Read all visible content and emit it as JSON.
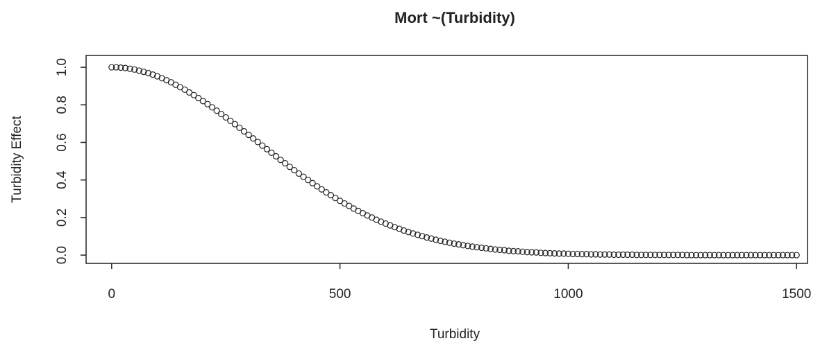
{
  "chart_data": {
    "type": "scatter",
    "title": "Mort ~(Turbidity)",
    "x_label": "Turbidity",
    "y_label": "Turbidity Effect",
    "x": [
      0,
      10,
      20,
      30,
      40,
      50,
      60,
      70,
      80,
      90,
      100,
      110,
      120,
      130,
      140,
      150,
      160,
      170,
      180,
      190,
      200,
      210,
      220,
      230,
      240,
      250,
      260,
      270,
      280,
      290,
      300,
      310,
      320,
      330,
      340,
      350,
      360,
      370,
      380,
      390,
      400,
      410,
      420,
      430,
      440,
      450,
      460,
      470,
      480,
      490,
      500,
      510,
      520,
      530,
      540,
      550,
      560,
      570,
      580,
      590,
      600,
      610,
      620,
      630,
      640,
      650,
      660,
      670,
      680,
      690,
      700,
      710,
      720,
      730,
      740,
      750,
      760,
      770,
      780,
      790,
      800,
      810,
      820,
      830,
      840,
      850,
      860,
      870,
      880,
      890,
      900,
      910,
      920,
      930,
      940,
      950,
      960,
      970,
      980,
      990,
      1000,
      1010,
      1020,
      1030,
      1040,
      1050,
      1060,
      1070,
      1080,
      1090,
      1100,
      1110,
      1120,
      1130,
      1140,
      1150,
      1160,
      1170,
      1180,
      1190,
      1200,
      1210,
      1220,
      1230,
      1240,
      1250,
      1260,
      1270,
      1280,
      1290,
      1300,
      1310,
      1320,
      1330,
      1340,
      1350,
      1360,
      1370,
      1380,
      1390,
      1400,
      1410,
      1420,
      1430,
      1440,
      1450,
      1460,
      1470,
      1480,
      1490,
      1500
    ],
    "values": [
      1.0,
      1.0,
      0.998,
      0.996,
      0.992,
      0.988,
      0.982,
      0.976,
      0.969,
      0.961,
      0.952,
      0.942,
      0.931,
      0.92,
      0.907,
      0.894,
      0.881,
      0.866,
      0.852,
      0.836,
      0.82,
      0.804,
      0.787,
      0.769,
      0.751,
      0.733,
      0.715,
      0.697,
      0.678,
      0.659,
      0.64,
      0.621,
      0.602,
      0.583,
      0.564,
      0.545,
      0.526,
      0.507,
      0.489,
      0.47,
      0.452,
      0.434,
      0.417,
      0.4,
      0.383,
      0.366,
      0.35,
      0.334,
      0.319,
      0.304,
      0.289,
      0.275,
      0.262,
      0.248,
      0.235,
      0.223,
      0.211,
      0.2,
      0.188,
      0.178,
      0.168,
      0.158,
      0.149,
      0.14,
      0.131,
      0.123,
      0.115,
      0.108,
      0.101,
      0.094,
      0.088,
      0.082,
      0.076,
      0.071,
      0.066,
      0.061,
      0.057,
      0.053,
      0.049,
      0.045,
      0.042,
      0.039,
      0.036,
      0.033,
      0.03,
      0.028,
      0.026,
      0.023,
      0.021,
      0.02,
      0.018,
      0.016,
      0.015,
      0.014,
      0.012,
      0.011,
      0.01,
      0.009,
      0.008,
      0.008,
      0.007,
      0.006,
      0.006,
      0.005,
      0.005,
      0.004,
      0.004,
      0.003,
      0.003,
      0.003,
      0.002,
      0.002,
      0.002,
      0.002,
      0.002,
      0.001,
      0.001,
      0.001,
      0.001,
      0.001,
      0.001,
      0.001,
      0.001,
      0.001,
      0.001,
      0.001,
      0,
      0,
      0,
      0,
      0,
      0,
      0,
      0,
      0,
      0,
      0,
      0,
      0,
      0,
      0,
      0,
      0,
      0,
      0,
      0,
      0,
      0,
      0,
      0,
      0
    ],
    "color": "#222222",
    "xlim": [
      -56,
      1524
    ],
    "xticks": [
      0,
      500,
      1000,
      1500
    ],
    "ylim": [
      -0.044,
      1.063
    ],
    "yticks": [
      {
        "value": 0,
        "label": "0.0"
      },
      0.2,
      0.4,
      0.6,
      0.8,
      {
        "value": 1,
        "label": "1.0"
      }
    ]
  }
}
